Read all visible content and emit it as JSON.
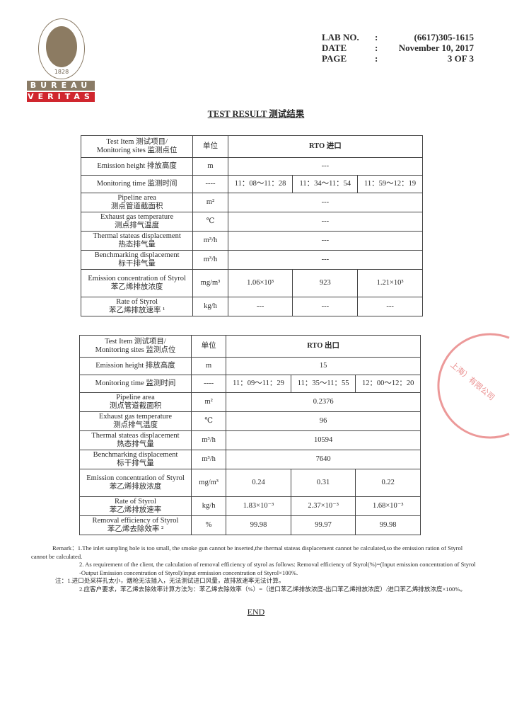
{
  "logo": {
    "ring_text": "BUREAU VERITAS",
    "year": "1828",
    "line1": "BUREAU",
    "line2": "VERITAS",
    "colors": {
      "brown": "#8a7b66",
      "red": "#d0262e"
    }
  },
  "header": [
    {
      "key": "LAB NO.",
      "sep": ":",
      "value": "(6617)305-1615"
    },
    {
      "key": "DATE",
      "sep": ":",
      "value": "November 10, 2017"
    },
    {
      "key": "PAGE",
      "sep": ":",
      "value": "3 OF 3"
    }
  ],
  "title": "TEST RESULT 测试结果",
  "tables": [
    {
      "site": "RTO 进口",
      "rows": [
        {
          "en": "Test Item 测试项目/",
          "cn": "Monitoring sites 监测点位",
          "unit": "单位",
          "header": true
        },
        {
          "en": "Emission height 排放高度",
          "cn": "",
          "unit": "m",
          "merged": "---"
        },
        {
          "en": "Monitoring time 监测时间",
          "cn": "",
          "unit": "----",
          "values": [
            "11：08～11：28",
            "11：34～11：54",
            "11：59～12：19"
          ]
        },
        {
          "en": "Pipeline area",
          "cn": "测点管道截面积",
          "unit": "m²",
          "merged": "---"
        },
        {
          "en": "Exhaust gas temperature",
          "cn": "测点排气温度",
          "unit": "℃",
          "merged": "---"
        },
        {
          "en": "Thermal stateas displacement",
          "cn": "热态排气量",
          "unit": "m³/h",
          "merged": "---"
        },
        {
          "en": "Benchmarking displacement",
          "cn": "标干排气量",
          "unit": "m³/h",
          "merged": "---"
        },
        {
          "en": "Emission concentration of Styrol",
          "cn": "苯乙烯排放浓度",
          "unit": "mg/m³",
          "values": [
            "1.06×10³",
            "923",
            "1.21×10³"
          ]
        },
        {
          "en": "Rate of Styrol",
          "cn": "苯乙烯排放速率 ¹",
          "unit": "kg/h",
          "values": [
            "---",
            "---",
            "---"
          ]
        }
      ]
    },
    {
      "site": "RTO 出口",
      "rows": [
        {
          "en": "Test Item 测试项目/",
          "cn": "Monitoring sites 监测点位",
          "unit": "单位",
          "header": true
        },
        {
          "en": "Emission height 排放高度",
          "cn": "",
          "unit": "m",
          "merged": "15"
        },
        {
          "en": "Monitoring time 监测时间",
          "cn": "",
          "unit": "----",
          "values": [
            "11：09～11：29",
            "11：35～11：55",
            "12：00～12：20"
          ]
        },
        {
          "en": "Pipeline area",
          "cn": "测点管道截面积",
          "unit": "m²",
          "merged": "0.2376"
        },
        {
          "en": "Exhaust gas temperature",
          "cn": "测点排气温度",
          "unit": "℃",
          "merged": "96"
        },
        {
          "en": "Thermal stateas displacement",
          "cn": "热态排气量",
          "unit": "m³/h",
          "merged": "10594"
        },
        {
          "en": "Benchmarking displacement",
          "cn": "标干排气量",
          "unit": "m³/h",
          "merged": "7640"
        },
        {
          "en": "Emission concentration of Styrol",
          "cn": "苯乙烯排放浓度",
          "unit": "mg/m³",
          "values": [
            "0.24",
            "0.31",
            "0.22"
          ]
        },
        {
          "en": "Rate of Styrol",
          "cn": "苯乙烯排放速率",
          "unit": "kg/h",
          "values": [
            "1.83×10⁻³",
            "2.37×10⁻³",
            "1.68×10⁻³"
          ]
        },
        {
          "en": "Removal efficiency of Styrol",
          "cn": "苯乙烯去除效率 ²",
          "unit": "%",
          "values": [
            "99.98",
            "99.97",
            "99.98"
          ]
        }
      ]
    }
  ],
  "remarks": {
    "r1": "Remark：1.The inlet sampling hole is too small, the smoke gun cannot be inserted,the thermal stateas displacement cannot be calculated,so the emission ration of Styrol cannot be calculated.",
    "r2": "2. As requirement of the client, the calculation of removal efficiency of styrol as follows: Removal efficiency of Styrol(%)=(Input emission concentration of Styrol -Output Emission concentration of Styrol)/input ermission concentration of Styrol×100%.",
    "c1": "注：1.进口处采样孔太小，烟枪无法插入，无法测试进口风量，故排放速率无法计算。",
    "c2": "2.应客户要求，苯乙烯去除效率计算方法为：苯乙烯去除效率（%）=（进口苯乙烯排放浓度-出口苯乙烯排放浓度）/进口苯乙烯排放浓度×100%。"
  },
  "end": "END",
  "stamp": {
    "text": "上海）有限公司",
    "color": "#dc4646"
  }
}
